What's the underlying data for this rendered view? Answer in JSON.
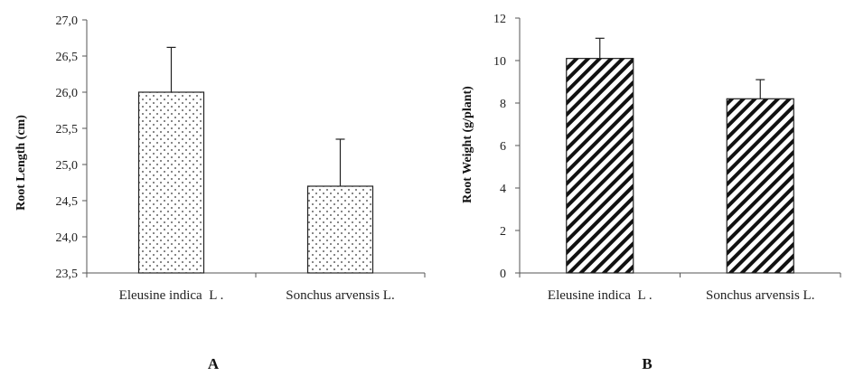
{
  "chart_data": [
    {
      "type": "bar",
      "panel_label": "A",
      "ylabel": "Root Length (cm)",
      "xlabel": "",
      "categories": [
        "Eleusine indica  L .",
        "Sonchus arvensis L."
      ],
      "values": [
        26.0,
        24.7
      ],
      "errors": [
        0.62,
        0.65
      ],
      "ylim": [
        23.5,
        27.0
      ],
      "yticks": [
        23.5,
        24.0,
        24.5,
        25.0,
        25.5,
        26.0,
        26.5,
        27.0
      ],
      "ytick_labels": [
        "23,5",
        "24,0",
        "24,5",
        "25,0",
        "25,5",
        "26,0",
        "26,5",
        "27,0"
      ],
      "fill_pattern": "dots",
      "grid": false,
      "legend": "none"
    },
    {
      "type": "bar",
      "panel_label": "B",
      "ylabel": "Root Weight (g/plant)",
      "xlabel": "",
      "categories": [
        "Eleusine indica  L .",
        "Sonchus arvensis L."
      ],
      "values": [
        10.1,
        8.2
      ],
      "errors": [
        0.95,
        0.9
      ],
      "ylim": [
        0,
        12
      ],
      "yticks": [
        0,
        2,
        4,
        6,
        8,
        10,
        12
      ],
      "ytick_labels": [
        "0",
        "2",
        "4",
        "6",
        "8",
        "10",
        "12"
      ],
      "fill_pattern": "diagonal-stripes",
      "grid": false,
      "legend": "none"
    }
  ]
}
